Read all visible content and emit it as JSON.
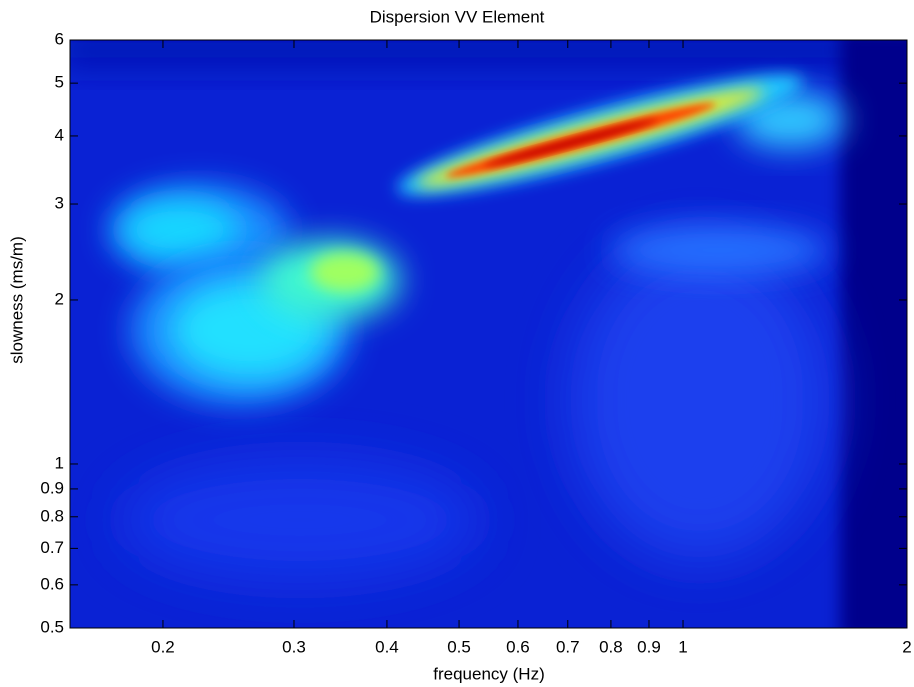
{
  "chart_data": {
    "type": "heatmap",
    "title": "Dispersion VV Element",
    "xlabel": "frequency (Hz)",
    "ylabel": "slowness (ms/m)",
    "xscale": "log",
    "yscale": "log",
    "xlim": [
      0.15,
      2
    ],
    "ylim": [
      0.5,
      6
    ],
    "xticks": [
      0.2,
      0.3,
      0.4,
      0.5,
      0.6,
      0.7,
      0.8,
      0.9,
      1,
      2
    ],
    "yticks": [
      0.5,
      0.6,
      0.7,
      0.8,
      0.9,
      1,
      2,
      3,
      4,
      5,
      6
    ],
    "colormap": "jet"
  }
}
